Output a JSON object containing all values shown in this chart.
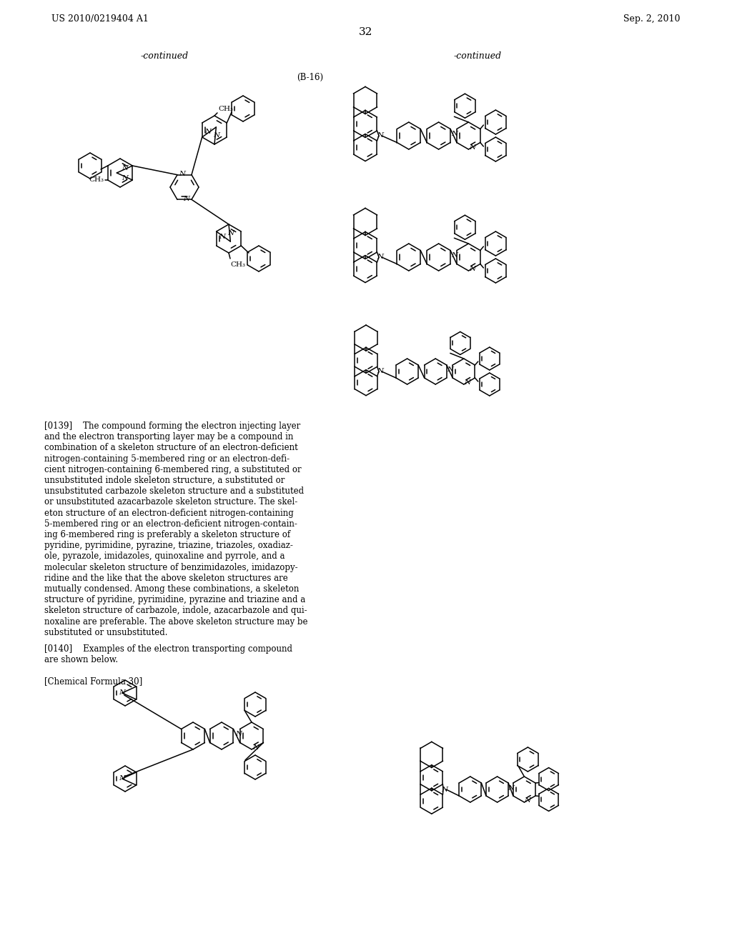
{
  "header_left": "US 2010/0219404 A1",
  "header_right": "Sep. 2, 2010",
  "page_number": "32",
  "bg_color": "#ffffff",
  "text_color": "#000000",
  "continued_left": "-continued",
  "continued_right": "-continued",
  "label_b16": "(B-16)",
  "label_chem30": "[Chemical Formula 30]",
  "para0139_lines": [
    "[0139]    The compound forming the electron injecting layer",
    "and the electron transporting layer may be a compound in",
    "combination of a skeleton structure of an electron-deficient",
    "nitrogen-containing 5-membered ring or an electron-defi-",
    "cient nitrogen-containing 6-membered ring, a substituted or",
    "unsubstituted indole skeleton structure, a substituted or",
    "unsubstituted carbazole skeleton structure and a substituted",
    "or unsubstituted azacarbazole skeleton structure. The skel-",
    "eton structure of an electron-deficient nitrogen-containing",
    "5-membered ring or an electron-deficient nitrogen-contain-",
    "ing 6-membered ring is preferably a skeleton structure of",
    "pyridine, pyrimidine, pyrazine, triazine, triazoles, oxadiaz-",
    "ole, pyrazole, imidazoles, quinoxaline and pyrrole, and a",
    "molecular skeleton structure of benzimidazoles, imidazopy-",
    "ridine and the like that the above skeleton structures are",
    "mutually condensed. Among these combinations, a skeleton",
    "structure of pyridine, pyrimidine, pyrazine and triazine and a",
    "skeleton structure of carbazole, indole, azacarbazole and qui-",
    "noxaline are preferable. The above skeleton structure may be",
    "substituted or unsubstituted."
  ],
  "para0140_lines": [
    "[0140]    Examples of the electron transporting compound",
    "are shown below."
  ]
}
